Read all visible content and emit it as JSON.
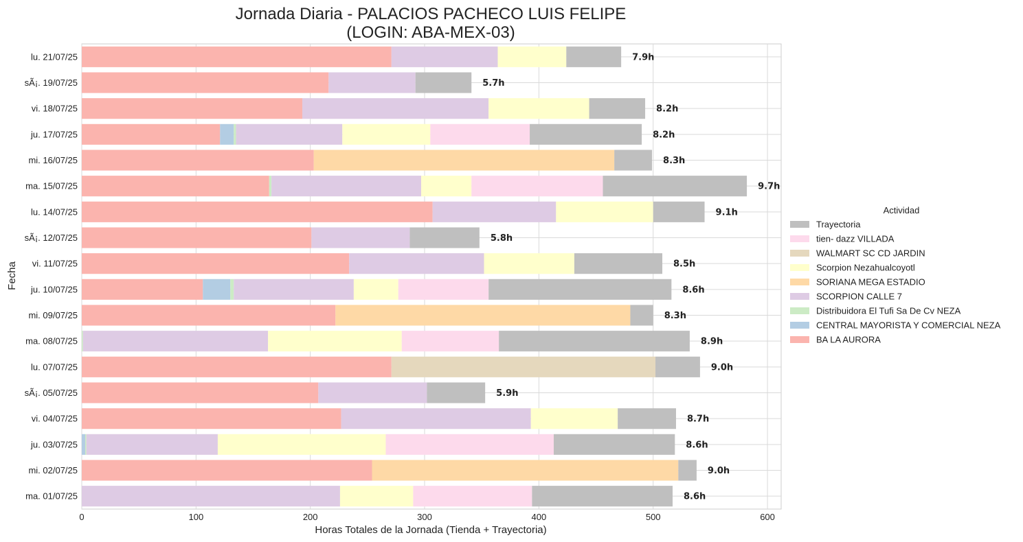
{
  "chart_data": {
    "type": "bar",
    "orientation": "horizontal",
    "stacked": true,
    "title_line1": "Jornada Diaria - PALACIOS PACHECO LUIS FELIPE",
    "title_line2": "(LOGIN: ABA-MEX-03)",
    "xlabel": "Horas Totales de la Jornada (Tienda + Trayectoria)",
    "ylabel": "Fecha",
    "xlim": [
      0,
      612
    ],
    "xticks": [
      0,
      100,
      200,
      300,
      400,
      500,
      600
    ],
    "grid": true,
    "legend_title": "Actividad",
    "legend_position": "right",
    "categories": [
      "lu. 21/07/25",
      "sÃ¡. 19/07/25",
      "vi. 18/07/25",
      "ju. 17/07/25",
      "mi. 16/07/25",
      "ma. 15/07/25",
      "lu. 14/07/25",
      "sÃ¡. 12/07/25",
      "vi. 11/07/25",
      "ju. 10/07/25",
      "mi. 09/07/25",
      "ma. 08/07/25",
      "lu. 07/07/25",
      "sÃ¡. 05/07/25",
      "vi. 04/07/25",
      "ju. 03/07/25",
      "mi. 02/07/25",
      "ma. 01/07/25"
    ],
    "totals": [
      "7.9h",
      "5.7h",
      "8.2h",
      "8.2h",
      "8.3h",
      "9.7h",
      "9.1h",
      "5.8h",
      "8.5h",
      "8.6h",
      "8.3h",
      "8.9h",
      "9.0h",
      "5.9h",
      "8.7h",
      "8.6h",
      "9.0h",
      "8.6h"
    ],
    "series": [
      {
        "name": "BA LA AURORA",
        "color": "#fbb4ae",
        "values": [
          271,
          216,
          193,
          121,
          203,
          164,
          307,
          201,
          234,
          106,
          222,
          0,
          271,
          207,
          227,
          0,
          254,
          0
        ]
      },
      {
        "name": "CENTRAL MAYORISTA Y COMERCIAL NEZA",
        "color": "#b3cde3",
        "values": [
          0,
          0,
          0,
          12,
          0,
          0,
          0,
          0,
          0,
          24,
          0,
          0,
          0,
          0,
          0,
          3,
          0,
          0
        ]
      },
      {
        "name": "Distribuidora El Tufi Sa De Cv NEZA",
        "color": "#ccebc5",
        "values": [
          0,
          0,
          0,
          2,
          0,
          2,
          0,
          0,
          0,
          3,
          0,
          1,
          0,
          0,
          0,
          1,
          0,
          0
        ]
      },
      {
        "name": "SCORPION CALLE 7",
        "color": "#decbe4",
        "values": [
          93,
          76,
          163,
          93,
          0,
          131,
          108,
          86,
          118,
          105,
          0,
          162,
          0,
          95,
          166,
          115,
          0,
          226
        ]
      },
      {
        "name": "SORIANA MEGA ESTADIO",
        "color": "#fed9a6",
        "values": [
          0,
          0,
          0,
          0,
          263,
          0,
          0,
          0,
          0,
          0,
          258,
          0,
          0,
          0,
          0,
          0,
          268,
          0
        ]
      },
      {
        "name": "Scorpion Nezahualcoyotl",
        "color": "#ffffcc",
        "values": [
          60,
          0,
          88,
          77,
          0,
          44,
          85,
          0,
          79,
          39,
          0,
          117,
          0,
          0,
          76,
          147,
          0,
          64
        ]
      },
      {
        "name": "WALMART SC CD JARDIN",
        "color": "#e5d8bd",
        "values": [
          0,
          0,
          0,
          0,
          0,
          0,
          0,
          0,
          0,
          0,
          0,
          0,
          231,
          0,
          0,
          0,
          0,
          0
        ]
      },
      {
        "name": "tien- dazz VILLADA",
        "color": "#fddaec",
        "values": [
          0,
          0,
          0,
          87,
          0,
          115,
          0,
          0,
          0,
          79,
          0,
          85,
          0,
          0,
          0,
          147,
          0,
          104
        ]
      },
      {
        "name": "Trayectoria",
        "color": "#bfbfbf",
        "values": [
          48,
          49,
          49,
          98,
          33,
          126,
          45,
          61,
          77,
          160,
          20,
          167,
          39,
          51,
          51,
          106,
          16,
          123
        ]
      }
    ]
  }
}
